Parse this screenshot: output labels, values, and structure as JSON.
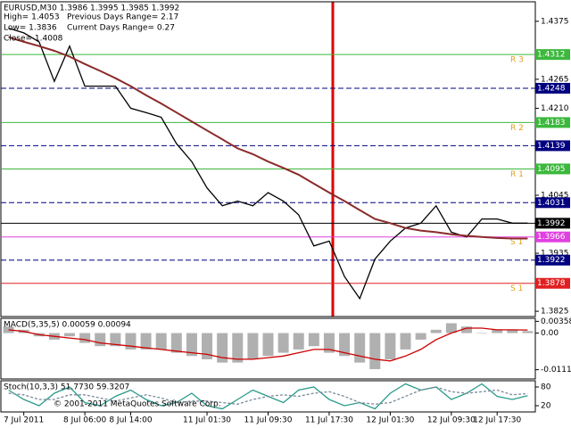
{
  "chart_data": [
    {
      "type": "line",
      "title": "EURUSD,M30  1.3986 1.3995 1.3985 1.3992",
      "info": [
        "High= 1.4053",
        "Low= 1.3836",
        "Close= 1.4008",
        "Previous Days Range= 2.17",
        "Current Days Range= 0.27"
      ],
      "categories": [
        null,
        "7 Jul 2011",
        null,
        null,
        null,
        "8 Jul 06:00",
        null,
        null,
        "8 Jul 14:00",
        null,
        null,
        null,
        null,
        "11 Jul 01:30",
        null,
        null,
        null,
        "11 Jul 09:30",
        null,
        null,
        null,
        "11 Jul 17:30",
        null,
        null,
        null,
        "12 Jul 01:30",
        null,
        null,
        null,
        "12 Jul 09:30",
        null,
        null,
        "12 Jul 17:30",
        null,
        null
      ],
      "series": [
        {
          "color": "#000000",
          "values": [
            1.4362,
            1.4353,
            1.4336,
            1.4261,
            1.4328,
            1.4252,
            1.4252,
            1.4252,
            1.421,
            1.4202,
            1.4193,
            1.4143,
            1.4109,
            1.4059,
            1.4025,
            1.4034,
            1.4025,
            1.405,
            1.4034,
            1.4008,
            1.3949,
            1.3958,
            1.3891,
            1.3849,
            1.3924,
            1.3958,
            1.3983,
            1.3992,
            1.4025,
            1.3975,
            1.3966,
            1.4,
            1.4,
            1.3992,
            1.3992
          ]
        },
        {
          "color": "#8b2a2a",
          "values": [
            1.4345,
            1.4336,
            1.4328,
            1.4319,
            1.4308,
            1.4294,
            1.4281,
            1.4267,
            1.4252,
            1.4235,
            1.4219,
            1.4202,
            1.4185,
            1.4168,
            1.4151,
            1.4134,
            1.4123,
            1.4109,
            1.4097,
            1.4084,
            1.4067,
            1.405,
            1.4034,
            1.4017,
            1.4,
            1.3992,
            1.3983,
            1.3978,
            1.3975,
            1.3971,
            1.3968,
            1.3966,
            1.3964,
            1.3963,
            1.3963
          ]
        }
      ],
      "levels": [
        {
          "value": 1.4312,
          "color": "#3cb83c",
          "label": "R 3"
        },
        {
          "value": 1.4248,
          "color": "#000080"
        },
        {
          "value": 1.4183,
          "color": "#3cb83c",
          "label": "R 2"
        },
        {
          "value": 1.4139,
          "color": "#000080"
        },
        {
          "value": 1.4095,
          "color": "#3cb83c",
          "label": "R 1"
        },
        {
          "value": 1.4031,
          "color": "#000080"
        },
        {
          "value": 1.3992,
          "color": "#000000"
        },
        {
          "value": 1.3966,
          "color": "#e040e0",
          "label": "S 1"
        },
        {
          "value": 1.3922,
          "color": "#000080"
        },
        {
          "value": 1.3878,
          "color": "#e02020",
          "label": "S 1"
        }
      ],
      "ylim": [
        1.3815,
        1.4412
      ],
      "yticks": [
        1.4375,
        1.4265,
        {
          "value": 1.421,
          "label": "1.4210"
        },
        1.4045,
        1.3935,
        1.3825
      ]
    },
    {
      "type": "bar",
      "title": "MACD(5,35,5) 0.00059 0.00094",
      "color": "#b0b0b0",
      "values": [
        0.002,
        0.001,
        -0.001,
        -0.002,
        -0.001,
        -0.003,
        -0.004,
        -0.004,
        -0.005,
        -0.005,
        -0.005,
        -0.006,
        -0.007,
        -0.008,
        -0.009,
        -0.009,
        -0.008,
        -0.007,
        -0.006,
        -0.005,
        -0.004,
        -0.006,
        -0.007,
        -0.009,
        -0.011,
        -0.008,
        -0.005,
        -0.002,
        0.001,
        0.003,
        0.002,
        0.0,
        0.001,
        0.001,
        0.0006
      ],
      "series": [
        {
          "color": "#cc0000",
          "values": [
            0.001,
            0.0005,
            -0.0005,
            -0.001,
            -0.0015,
            -0.002,
            -0.003,
            -0.0035,
            -0.004,
            -0.0045,
            -0.005,
            -0.0055,
            -0.006,
            -0.0065,
            -0.0075,
            -0.008,
            -0.008,
            -0.0075,
            -0.007,
            -0.006,
            -0.005,
            -0.005,
            -0.006,
            -0.007,
            -0.008,
            -0.0085,
            -0.007,
            -0.005,
            -0.002,
            0.0,
            0.0015,
            0.0015,
            0.001,
            0.001,
            0.00094
          ]
        }
      ],
      "ylim": [
        -0.014,
        0.0045
      ],
      "yticks": [
        0.00358,
        {
          "value": 0,
          "label": "0.00"
        },
        -0.01117
      ]
    },
    {
      "type": "line",
      "title": "Stoch(10,3,3) 51.7730 59.3207",
      "copyright": "© 2001-2011 MetaQuotes Software Corp.",
      "series": [
        {
          "color": "#2a9a8a",
          "values": [
            70,
            40,
            20,
            60,
            80,
            30,
            20,
            50,
            70,
            40,
            20,
            30,
            60,
            20,
            10,
            40,
            70,
            50,
            30,
            70,
            80,
            40,
            20,
            30,
            10,
            60,
            90,
            70,
            80,
            40,
            60,
            90,
            50,
            40,
            52
          ]
        },
        {
          "color": "#7a8a9a",
          "values": [
            60,
            55,
            40,
            40,
            55,
            55,
            45,
            35,
            45,
            55,
            45,
            30,
            35,
            35,
            30,
            25,
            40,
            50,
            55,
            50,
            60,
            65,
            50,
            30,
            25,
            30,
            50,
            70,
            80,
            65,
            60,
            65,
            70,
            55,
            59
          ]
        }
      ],
      "ylim": [
        0,
        100
      ],
      "yticks": [
        20,
        80
      ]
    }
  ]
}
